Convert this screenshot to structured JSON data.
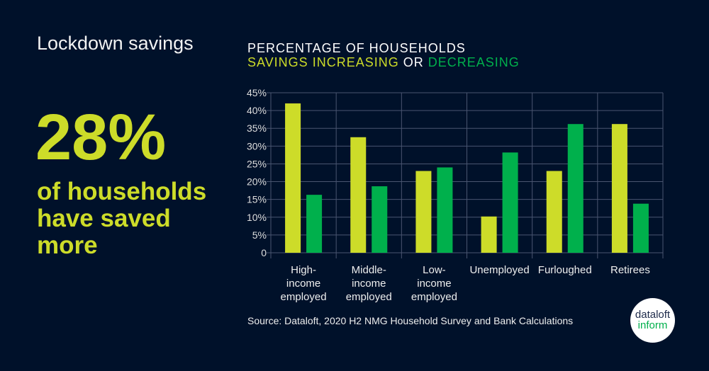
{
  "headline": {
    "title": "Lockdown savings",
    "big_number": "28%",
    "subtitle": "of households have saved more"
  },
  "chart_data": {
    "type": "bar",
    "title": "PERCENTAGE OF HOUSEHOLDS",
    "subtitle_parts": {
      "increasing": "SAVINGS INCREASING",
      "or": " OR ",
      "decreasing": "DECREASING"
    },
    "categories": [
      [
        "High-",
        "income",
        "employed"
      ],
      [
        "Middle-",
        "income",
        "employed"
      ],
      [
        "Low-",
        "income",
        "employed"
      ],
      [
        "Unemployed"
      ],
      [
        "Furloughed"
      ],
      [
        "Retirees"
      ]
    ],
    "series": [
      {
        "name": "Savings increasing",
        "color": "#cddc29",
        "values": [
          42,
          32.5,
          23,
          10.2,
          23,
          36.2
        ]
      },
      {
        "name": "Savings decreasing",
        "color": "#00b04c",
        "values": [
          16.3,
          18.7,
          24,
          28.2,
          36.2,
          13.8
        ]
      }
    ],
    "ylim": [
      0,
      45
    ],
    "yticks": [
      "0",
      "5%",
      "10%",
      "15%",
      "20%",
      "25%",
      "30%",
      "35%",
      "40%",
      "45%"
    ],
    "grid": true
  },
  "source": "Source: Dataloft, 2020 H2 NMG Household Survey and Bank Calculations",
  "logo": {
    "line1": "dataloft",
    "line2": "inform"
  }
}
